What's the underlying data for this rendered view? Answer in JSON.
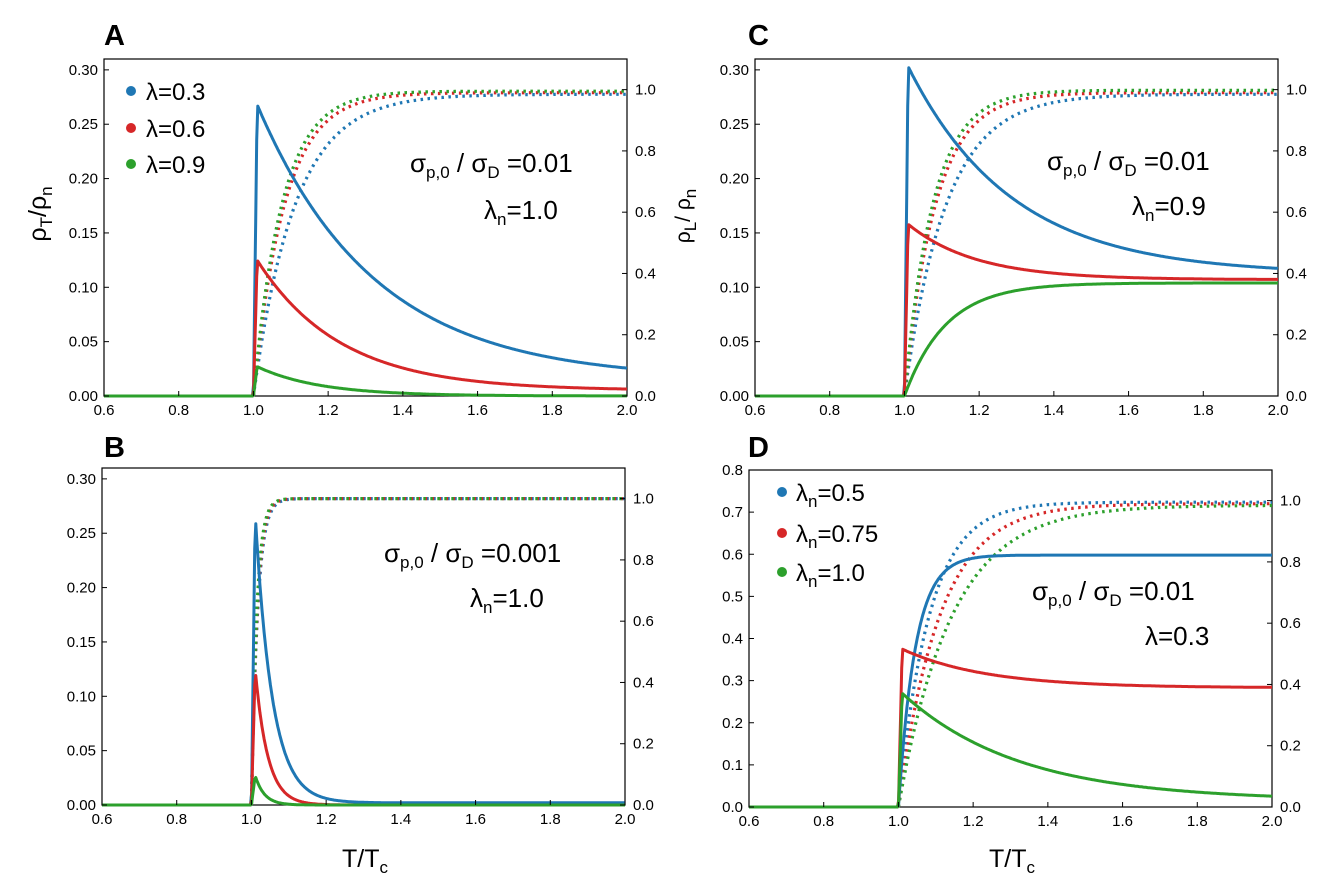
{
  "chart_data": [
    {
      "panel": "A",
      "type": "line",
      "ylabel": "ρT/ρn",
      "xlabel": "",
      "xlim": [
        0.6,
        2.0
      ],
      "ylim": [
        0,
        0.31
      ],
      "y2lim": [
        0,
        1.1
      ],
      "xticks": [
        "0.6",
        "0.8",
        "1.0",
        "1.2",
        "1.4",
        "1.6",
        "1.8",
        "2.0"
      ],
      "yticks": [
        "0.00",
        "0.05",
        "0.10",
        "0.15",
        "0.20",
        "0.25",
        "0.30"
      ],
      "y2ticks": [
        "0.0",
        "0.2",
        "0.4",
        "0.6",
        "0.8",
        "1.0"
      ],
      "annotation": [
        "σp,0 / σD =0.01",
        "λn=1.0"
      ],
      "legend_position": "top-left",
      "series": [
        {
          "name": "λ=0.3",
          "color": "#1f77b4",
          "style": "solid",
          "kind": "peak",
          "peak": 0.268,
          "tail": 0.015,
          "rate": 3.2
        },
        {
          "name": "λ=0.6",
          "color": "#d62728",
          "style": "solid",
          "kind": "peak",
          "peak": 0.125,
          "tail": 0.005,
          "rate": 4.5
        },
        {
          "name": "λ=0.9",
          "color": "#2ca02c",
          "style": "solid",
          "kind": "peak",
          "peak": 0.027,
          "tail": 0.0,
          "rate": 6.0
        },
        {
          "name": "λ=0.3 (right axis)",
          "color": "#1f77b4",
          "style": "dotted",
          "kind": "rise",
          "max": 0.985,
          "rate": 9
        },
        {
          "name": "λ=0.6 (right axis)",
          "color": "#d62728",
          "style": "dotted",
          "kind": "rise",
          "max": 0.99,
          "rate": 12
        },
        {
          "name": "λ=0.9 (right axis)",
          "color": "#2ca02c",
          "style": "dotted",
          "kind": "rise",
          "max": 0.995,
          "rate": 13
        }
      ]
    },
    {
      "panel": "B",
      "type": "line",
      "ylabel": "",
      "xlabel": "T/Tc",
      "xlim": [
        0.6,
        2.0
      ],
      "ylim": [
        0,
        0.31
      ],
      "y2lim": [
        0,
        1.1
      ],
      "xticks": [
        "0.6",
        "0.8",
        "1.0",
        "1.2",
        "1.4",
        "1.6",
        "1.8",
        "2.0"
      ],
      "yticks": [
        "0.00",
        "0.05",
        "0.10",
        "0.15",
        "0.20",
        "0.25",
        "0.30"
      ],
      "y2ticks": [
        "0.0",
        "0.2",
        "0.4",
        "0.6",
        "0.8",
        "1.0"
      ],
      "annotation": [
        "σp,0 / σD =0.001",
        "λn=1.0"
      ],
      "series": [
        {
          "name": "λ=0.3",
          "color": "#1f77b4",
          "style": "solid",
          "kind": "peak",
          "peak": 0.268,
          "tail": 0.002,
          "rate": 22
        },
        {
          "name": "λ=0.6",
          "color": "#d62728",
          "style": "solid",
          "kind": "peak",
          "peak": 0.125,
          "tail": 0.0,
          "rate": 30
        },
        {
          "name": "λ=0.9",
          "color": "#2ca02c",
          "style": "solid",
          "kind": "peak",
          "peak": 0.027,
          "tail": 0.0,
          "rate": 40
        },
        {
          "name": "λ=0.3 (right axis)",
          "color": "#1f77b4",
          "style": "dotted",
          "kind": "rise",
          "max": 1.0,
          "rate": 60
        },
        {
          "name": "λ=0.6 (right axis)",
          "color": "#d62728",
          "style": "dotted",
          "kind": "rise",
          "max": 1.0,
          "rate": 65
        },
        {
          "name": "λ=0.9 (right axis)",
          "color": "#2ca02c",
          "style": "dotted",
          "kind": "rise",
          "max": 1.0,
          "rate": 70
        }
      ]
    },
    {
      "panel": "C",
      "type": "line",
      "ylabel": "ρL/ ρn",
      "xlabel": "",
      "xlim": [
        0.6,
        2.0
      ],
      "ylim": [
        0,
        0.31
      ],
      "y2lim": [
        0,
        1.1
      ],
      "xticks": [
        "0.6",
        "0.8",
        "1.0",
        "1.2",
        "1.4",
        "1.6",
        "1.8",
        "2.0"
      ],
      "yticks": [
        "0.00",
        "0.05",
        "0.10",
        "0.15",
        "0.20",
        "0.25",
        "0.30"
      ],
      "y2ticks": [
        "0.0",
        "0.2",
        "0.4",
        "0.6",
        "0.8",
        "1.0"
      ],
      "annotation": [
        "σp,0 / σD =0.01",
        "λn=0.9"
      ],
      "series": [
        {
          "name": "λ=0.3",
          "color": "#1f77b4",
          "style": "solid",
          "kind": "peak",
          "peak": 0.303,
          "tail": 0.112,
          "rate": 3.6
        },
        {
          "name": "λ=0.6",
          "color": "#d62728",
          "style": "solid",
          "kind": "peak",
          "peak": 0.158,
          "tail": 0.107,
          "rate": 5.5
        },
        {
          "name": "λ=0.9",
          "color": "#2ca02c",
          "style": "solid",
          "kind": "rise",
          "max": 0.104,
          "rate": 9
        },
        {
          "name": "λ=0.3 (right axis)",
          "color": "#1f77b4",
          "style": "dotted",
          "kind": "rise",
          "max": 0.985,
          "rate": 9
        },
        {
          "name": "λ=0.6 (right axis)",
          "color": "#d62728",
          "style": "dotted",
          "kind": "rise",
          "max": 0.99,
          "rate": 12
        },
        {
          "name": "λ=0.9 (right axis)",
          "color": "#2ca02c",
          "style": "dotted",
          "kind": "rise",
          "max": 0.998,
          "rate": 13
        }
      ]
    },
    {
      "panel": "D",
      "type": "line",
      "ylabel": "",
      "xlabel": "T/Tc",
      "xlim": [
        0.6,
        2.0
      ],
      "ylim": [
        0,
        0.8
      ],
      "y2lim": [
        0,
        1.1
      ],
      "xticks": [
        "0.6",
        "0.8",
        "1.0",
        "1.2",
        "1.4",
        "1.6",
        "1.8",
        "2.0"
      ],
      "yticks": [
        "0.0",
        "0.1",
        "0.2",
        "0.3",
        "0.4",
        "0.5",
        "0.6",
        "0.7",
        "0.8"
      ],
      "y2ticks": [
        "0.0",
        "0.2",
        "0.4",
        "0.6",
        "0.8",
        "1.0"
      ],
      "annotation": [
        "σp,0 / σD =0.01",
        "λ=0.3"
      ],
      "legend_position": "top-left",
      "series": [
        {
          "name": "λn=0.5",
          "color": "#1f77b4",
          "style": "solid",
          "kind": "rise",
          "max": 0.598,
          "rate": 22
        },
        {
          "name": "λn=0.75",
          "color": "#d62728",
          "style": "solid",
          "kind": "peak",
          "peak": 0.375,
          "tail": 0.283,
          "rate": 4.5
        },
        {
          "name": "λn=1.0",
          "color": "#2ca02c",
          "style": "solid",
          "kind": "peak",
          "peak": 0.27,
          "tail": 0.015,
          "rate": 3.2
        },
        {
          "name": "λn=0.5 (right axis)",
          "color": "#1f77b4",
          "style": "dotted",
          "kind": "rise",
          "max": 0.995,
          "rate": 12
        },
        {
          "name": "λn=0.75 (right axis)",
          "color": "#d62728",
          "style": "dotted",
          "kind": "rise",
          "max": 0.99,
          "rate": 9
        },
        {
          "name": "λn=1.0 (right axis)",
          "color": "#2ca02c",
          "style": "dotted",
          "kind": "rise",
          "max": 0.985,
          "rate": 7
        }
      ]
    }
  ]
}
